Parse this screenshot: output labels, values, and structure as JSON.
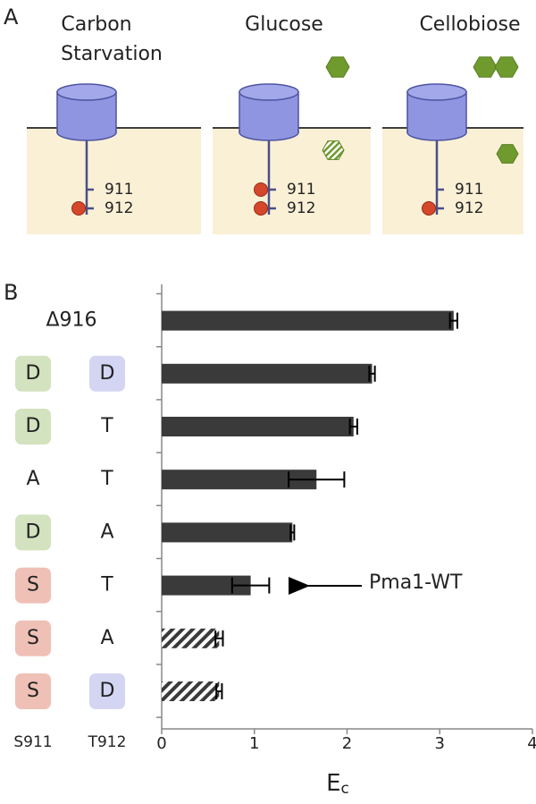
{
  "panel_a": {
    "label": "A",
    "panels": [
      {
        "title": [
          "Carbon",
          "Starvation"
        ],
        "sites": [
          "911",
          "912"
        ]
      },
      {
        "title": [
          "Glucose"
        ],
        "sites": [
          "911",
          "912"
        ]
      },
      {
        "title": [
          "Cellobiose"
        ],
        "sites": [
          "911",
          "912"
        ]
      }
    ]
  },
  "chart_data": {
    "type": "bar",
    "panel_label": "B",
    "orientation": "horizontal",
    "row_labels": [
      [
        "Δ916"
      ],
      [
        "D",
        "D"
      ],
      [
        "D",
        "T"
      ],
      [
        "A",
        "T"
      ],
      [
        "D",
        "A"
      ],
      [
        "S",
        "T"
      ],
      [
        "S",
        "A"
      ],
      [
        "S",
        "D"
      ]
    ],
    "column_labels": [
      "S911",
      "T912"
    ],
    "label_colors": [
      {
        "D": "#d3e2bf",
        "S": "#efc0b6"
      },
      {
        "D": "#d3d5f2"
      }
    ],
    "values": [
      3.15,
      2.27,
      2.07,
      1.67,
      1.41,
      0.96,
      0.62,
      0.62
    ],
    "errors": [
      0.04,
      0.03,
      0.04,
      0.3,
      0.02,
      0.2,
      0.04,
      0.03
    ],
    "hatched": [
      false,
      false,
      false,
      false,
      false,
      false,
      true,
      true
    ],
    "color": "#3a3a3a",
    "xlim": [
      0,
      4
    ],
    "xticks": [
      0,
      1,
      2,
      3,
      4
    ],
    "xlabel": {
      "main": "E",
      "sub": "c"
    },
    "annotation": "Pma1-WT"
  }
}
